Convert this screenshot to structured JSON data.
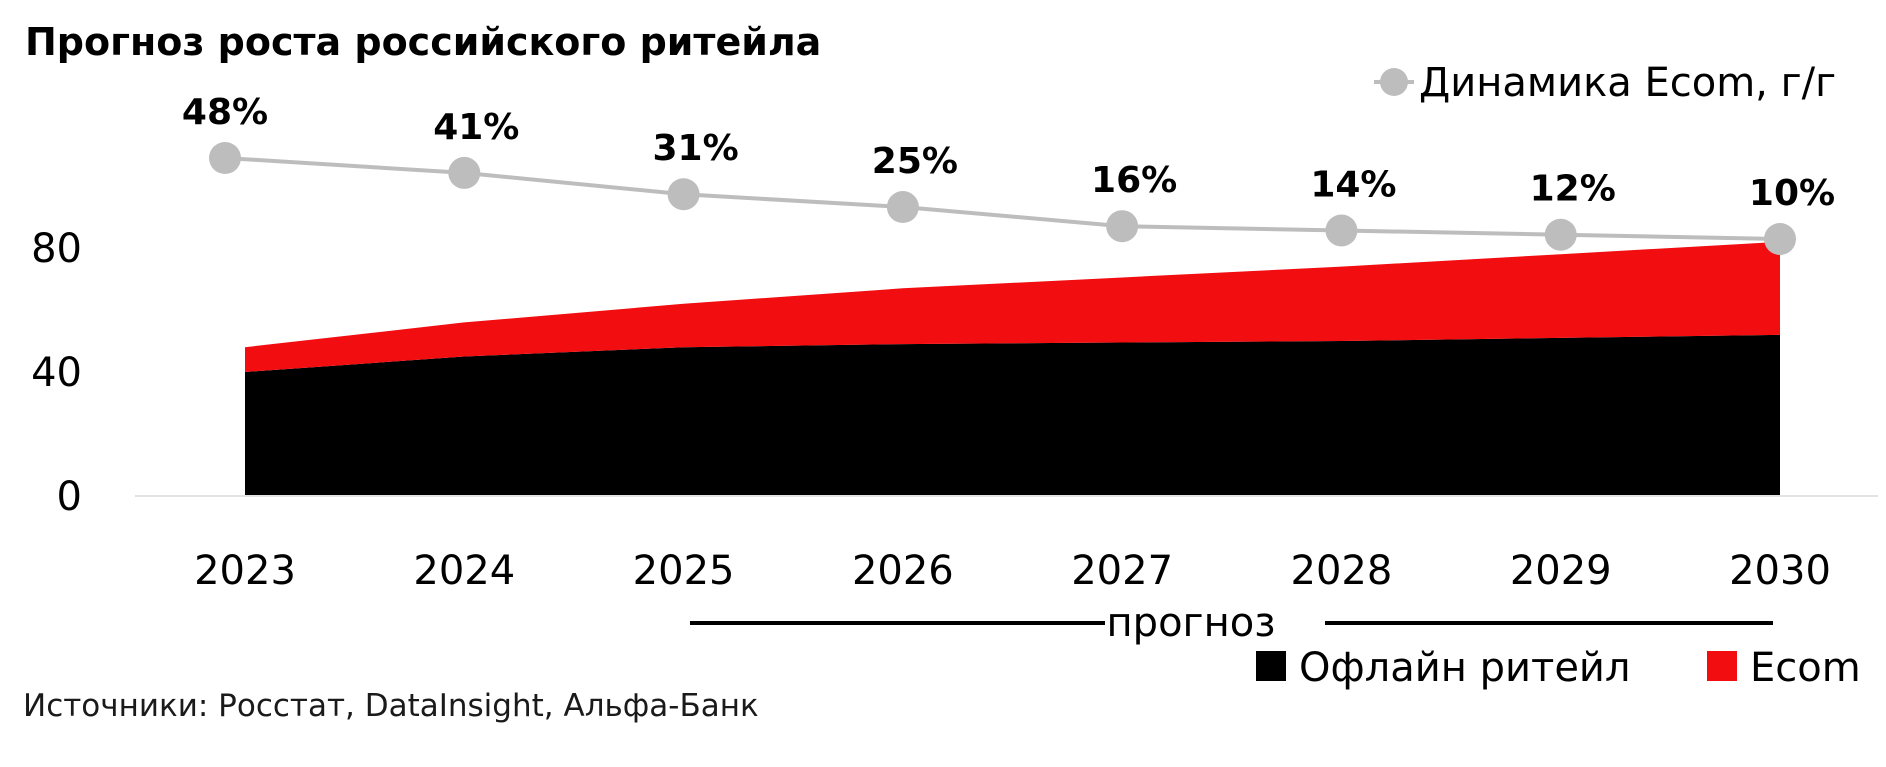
{
  "chart_data": {
    "type": "area",
    "title": "Прогноз роста российского ритейла",
    "categories": [
      "2023",
      "2024",
      "2025",
      "2026",
      "2027",
      "2028",
      "2029",
      "2030"
    ],
    "ylim": [
      0,
      80
    ],
    "yticks": [
      "0",
      "40",
      "80"
    ],
    "grid": false,
    "stacked": true,
    "series": [
      {
        "name": "Офлайн ритейл",
        "color": "#000000",
        "values": [
          40,
          45,
          48,
          49,
          49.5,
          50,
          51,
          52
        ]
      },
      {
        "name": "Ecom",
        "color": "#F20D10",
        "values": [
          8,
          11,
          14,
          18,
          21,
          24,
          27,
          30
        ]
      }
    ],
    "line_series": {
      "name": "Динамика Ecom, г/г",
      "color": "#BDBDBD",
      "values": [
        48,
        41,
        31,
        25,
        16,
        14,
        12,
        10
      ],
      "labels": [
        "48%",
        "41%",
        "31%",
        "25%",
        "16%",
        "14%",
        "12%",
        "10%"
      ]
    },
    "forecast_label": "прогноз",
    "legend_position": "top-right",
    "source": "Источники: Росстат, DataInsight, Альфа-Банк"
  }
}
